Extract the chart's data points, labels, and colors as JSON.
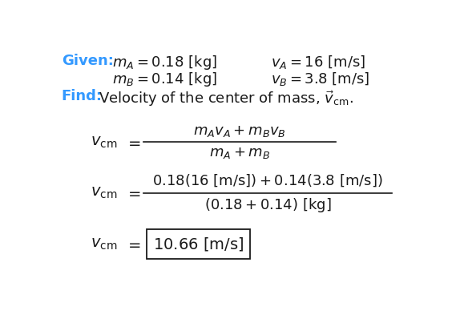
{
  "bg_color": "#ffffff",
  "blue_color": "#3399FF",
  "black_color": "#1a1a1a",
  "figsize": [
    5.64,
    4.13
  ],
  "dpi": 100,
  "fs_label": 13.0,
  "fs_math": 13.0,
  "fs_find": 13.0
}
